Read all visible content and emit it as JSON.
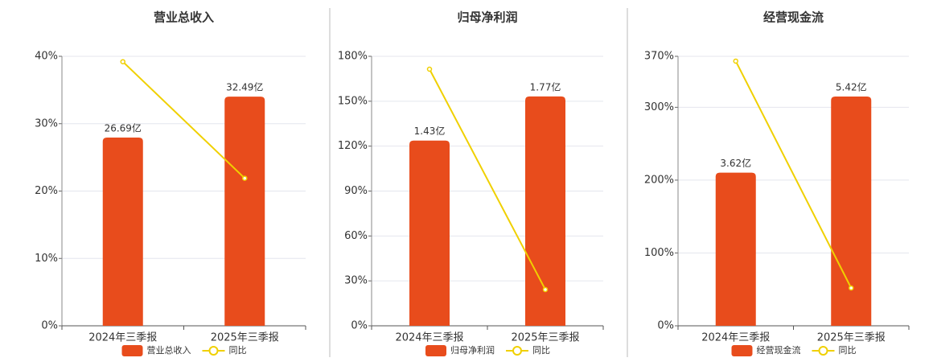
{
  "chart_data": [
    {
      "type": "bar-line",
      "title": "营业总收入",
      "categories": [
        "2024年三季报",
        "2025年三季报"
      ],
      "series": [
        {
          "name": "营业总收入",
          "color": "#e84c1c",
          "values": [
            26.69,
            32.49
          ],
          "value_labels": [
            "26.69亿",
            "32.49亿"
          ],
          "axis": "y2"
        },
        {
          "name": "同比",
          "color": "#f0d000",
          "values": [
            39.2,
            21.9
          ]
        }
      ],
      "ylim": [
        0,
        40
      ],
      "yticks": [
        {
          "value": 0,
          "label": "0%"
        },
        {
          "value": 10,
          "label": "10%"
        },
        {
          "value": 20,
          "label": "20%"
        },
        {
          "value": 30,
          "label": "30%"
        },
        {
          "value": 40,
          "label": "40%"
        }
      ],
      "y2lim": [
        0,
        38.2
      ],
      "grid": true
    },
    {
      "type": "bar-line",
      "title": "归母净利润",
      "categories": [
        "2024年三季报",
        "2025年三季报"
      ],
      "series": [
        {
          "name": "归母净利润",
          "color": "#e84c1c",
          "values": [
            1.43,
            1.77
          ],
          "value_labels": [
            "1.43亿",
            "1.77亿"
          ],
          "axis": "y2"
        },
        {
          "name": "同比",
          "color": "#f0d000",
          "values": [
            171.4,
            24.2
          ]
        }
      ],
      "ylim": [
        0,
        180
      ],
      "yticks": [
        {
          "value": 0,
          "label": "0%"
        },
        {
          "value": 30,
          "label": "30%"
        },
        {
          "value": 60,
          "label": "60%"
        },
        {
          "value": 90,
          "label": "90%"
        },
        {
          "value": 120,
          "label": "120%"
        },
        {
          "value": 150,
          "label": "150%"
        },
        {
          "value": 180,
          "label": "180%"
        }
      ],
      "y2lim": [
        0,
        2.08
      ],
      "grid": true
    },
    {
      "type": "bar-line",
      "title": "经营现金流",
      "categories": [
        "2024年三季报",
        "2025年三季报"
      ],
      "series": [
        {
          "name": "经营现金流",
          "color": "#e84c1c",
          "values": [
            3.62,
            5.42
          ],
          "value_labels": [
            "3.62亿",
            "5.42亿"
          ],
          "axis": "y2"
        },
        {
          "name": "同比",
          "color": "#f0d000",
          "values": [
            363.4,
            51.9
          ]
        }
      ],
      "ylim": [
        0,
        370
      ],
      "yticks": [
        {
          "value": 0,
          "label": "0%"
        },
        {
          "value": 100,
          "label": "100%"
        },
        {
          "value": 200,
          "label": "200%"
        },
        {
          "value": 300,
          "label": "300%"
        },
        {
          "value": 370,
          "label": "370%"
        }
      ],
      "y2lim": [
        0,
        6.37
      ],
      "grid": true
    }
  ]
}
